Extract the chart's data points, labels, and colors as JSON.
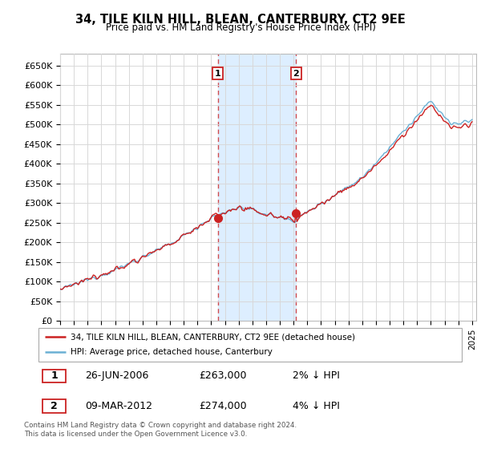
{
  "title": "34, TILE KILN HILL, BLEAN, CANTERBURY, CT2 9EE",
  "subtitle": "Price paid vs. HM Land Registry's House Price Index (HPI)",
  "ylabel_ticks": [
    "£0",
    "£50K",
    "£100K",
    "£150K",
    "£200K",
    "£250K",
    "£300K",
    "£350K",
    "£400K",
    "£450K",
    "£500K",
    "£550K",
    "£600K",
    "£650K"
  ],
  "ytick_values": [
    0,
    50000,
    100000,
    150000,
    200000,
    250000,
    300000,
    350000,
    400000,
    450000,
    500000,
    550000,
    600000,
    650000
  ],
  "hpi_color": "#6ab0d4",
  "price_color": "#cc2222",
  "sale1_date": "26-JUN-2006",
  "sale1_price": 263000,
  "sale1_pct": "2%",
  "sale2_date": "09-MAR-2012",
  "sale2_price": 274000,
  "sale2_pct": "4%",
  "background_color": "#ffffff",
  "plot_bg_color": "#ffffff",
  "grid_color": "#d8d8d8",
  "shade_color": "#ddeeff",
  "legend_label1": "34, TILE KILN HILL, BLEAN, CANTERBURY, CT2 9EE (detached house)",
  "legend_label2": "HPI: Average price, detached house, Canterbury",
  "footer": "Contains HM Land Registry data © Crown copyright and database right 2024.\nThis data is licensed under the Open Government Licence v3.0.",
  "x_start_year": 1995,
  "x_end_year": 2025
}
